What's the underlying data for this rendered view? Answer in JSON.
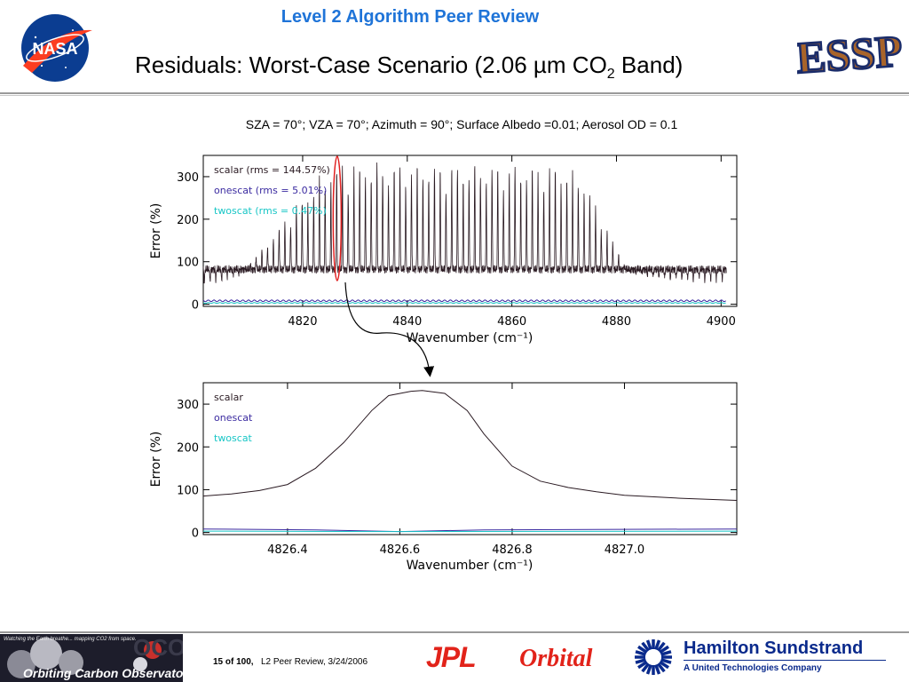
{
  "header": {
    "review_title": "Level 2 Algorithm Peer Review",
    "title_main": "Residuals: Worst-Case Scenario (2.06 µm CO",
    "title_sub": "2",
    "title_end": " Band)",
    "nasa_logo_text": "NASA",
    "essp_logo_text": "ESSP"
  },
  "conditions": "SZA = 70°; VZA = 70°; Azimuth = 90°; Surface Albedo =0.01; Aerosol OD = 0.1",
  "footer": {
    "oco_tagline": "Watching the Earth breathe... mapping CO2 from space.",
    "oco_name": "Orbiting Carbon Observatory",
    "page_bold": "15  of  100,",
    "page_rest": "L2 Peer Review, 3/24/2006",
    "jpl": "JPL",
    "orbital": "Orbital",
    "hs_name": "Hamilton Sundstrand",
    "hs_sub": "A United Technologies Company"
  },
  "colors": {
    "scalar": "#2a1a22",
    "onescat": "#3a2aa0",
    "twoscat": "#18c6c6",
    "highlight": "#e02020",
    "review_title": "#1f74d8"
  },
  "chart_data": [
    {
      "type": "line",
      "title": "",
      "xlabel": "Wavenumber (cm⁻¹)",
      "ylabel": "Error (%)",
      "xlim": [
        4801,
        4903
      ],
      "ylim": [
        -5,
        350
      ],
      "x_ticks": [
        4820,
        4840,
        4860,
        4880,
        4900
      ],
      "x_tick_labels": [
        "4820",
        "4840",
        "4860",
        "4880",
        "4900"
      ],
      "y_ticks": [
        0,
        100,
        200,
        300
      ],
      "y_tick_labels": [
        "0",
        "100",
        "200",
        "300"
      ],
      "legend": [
        {
          "series": "scalar",
          "label": "scalar (rms = 144.57%)"
        },
        {
          "series": "onescat",
          "label": "onescat (rms = 5.01%)"
        },
        {
          "series": "twoscat",
          "label": "twoscat (rms = 0.47%)"
        }
      ],
      "legend_position": "top-left",
      "highlight_x": 4826.6,
      "series": [
        {
          "name": "scalar",
          "baseline": 82,
          "line_spacing": 1.1,
          "envelope": [
            [
              4801,
              40
            ],
            [
              4808,
              70
            ],
            [
              4813,
              140
            ],
            [
              4818,
              220
            ],
            [
              4822,
              280
            ],
            [
              4826,
              325
            ],
            [
              4830,
              330
            ],
            [
              4870,
              325
            ],
            [
              4874,
              290
            ],
            [
              4878,
              180
            ],
            [
              4882,
              80
            ],
            [
              4888,
              60
            ],
            [
              4903,
              50
            ]
          ]
        },
        {
          "name": "onescat",
          "baseline": 8,
          "amplitude": 2
        },
        {
          "name": "twoscat",
          "baseline": 3,
          "amplitude": 1
        }
      ]
    },
    {
      "type": "line",
      "title": "",
      "xlabel": "Wavenumber (cm⁻¹)",
      "ylabel": "Error (%)",
      "xlim": [
        4826.25,
        4827.2
      ],
      "ylim": [
        -5,
        350
      ],
      "x_ticks": [
        4826.4,
        4826.6,
        4826.8,
        4827.0
      ],
      "x_tick_labels": [
        "4826.4",
        "4826.6",
        "4826.8",
        "4827.0"
      ],
      "y_ticks": [
        0,
        100,
        200,
        300
      ],
      "y_tick_labels": [
        "0",
        "100",
        "200",
        "300"
      ],
      "legend": [
        {
          "series": "scalar",
          "label": "scalar"
        },
        {
          "series": "onescat",
          "label": "onescat"
        },
        {
          "series": "twoscat",
          "label": "twoscat"
        }
      ],
      "legend_position": "top-left",
      "series": [
        {
          "name": "scalar",
          "x": [
            4826.25,
            4826.3,
            4826.35,
            4826.4,
            4826.45,
            4826.5,
            4826.55,
            4826.58,
            4826.62,
            4826.64,
            4826.68,
            4826.72,
            4826.75,
            4826.8,
            4826.85,
            4826.9,
            4826.95,
            4827.0,
            4827.1,
            4827.2
          ],
          "y": [
            85,
            90,
            98,
            112,
            150,
            210,
            285,
            320,
            330,
            332,
            325,
            285,
            230,
            155,
            120,
            105,
            95,
            87,
            80,
            75
          ]
        },
        {
          "name": "onescat",
          "x": [
            4826.25,
            4826.45,
            4826.6,
            4826.75,
            4827.2
          ],
          "y": [
            8,
            6,
            2,
            6,
            8
          ]
        },
        {
          "name": "twoscat",
          "x": [
            4826.25,
            4826.6,
            4827.2
          ],
          "y": [
            3,
            2,
            3
          ]
        }
      ]
    }
  ]
}
